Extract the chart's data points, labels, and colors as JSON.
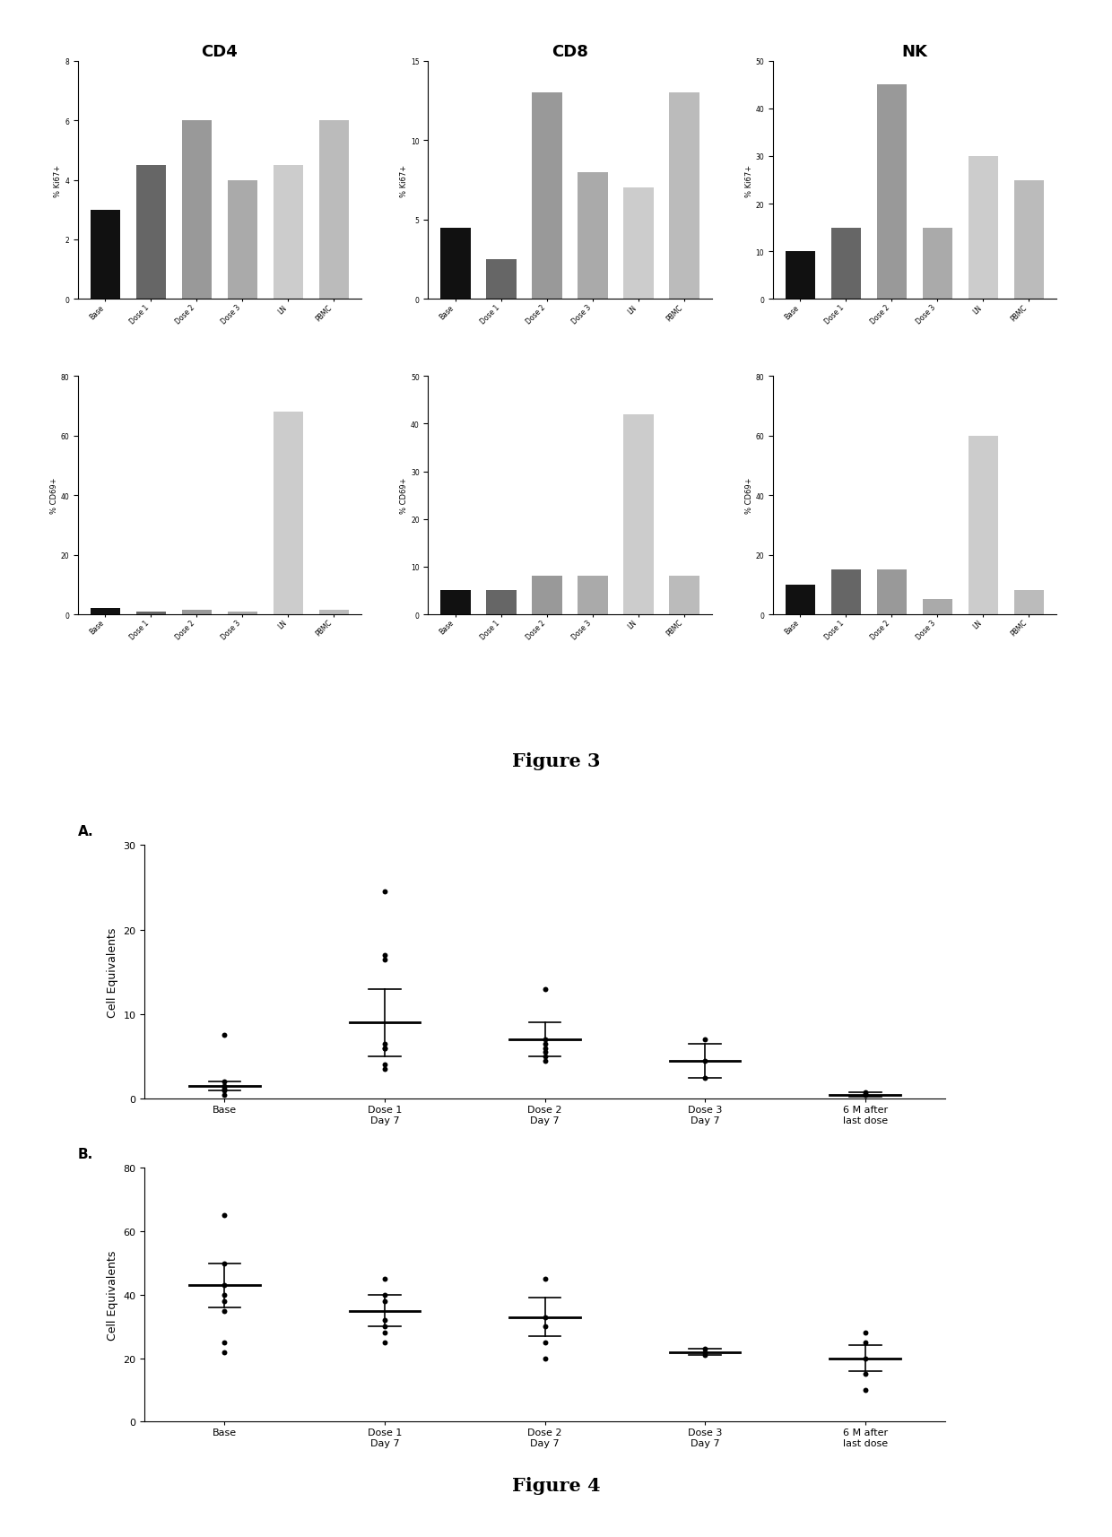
{
  "fig3": {
    "col_titles": [
      "CD4",
      "CD8",
      "NK"
    ],
    "x_labels": [
      "Base",
      "Dose 1",
      "Dose 2",
      "Dose 3",
      "LN",
      "PBMC"
    ],
    "ki67": {
      "CD4": [
        3.0,
        4.5,
        6.0,
        4.0,
        4.5,
        6.0
      ],
      "CD8": [
        4.5,
        2.5,
        13.0,
        8.0,
        7.0,
        13.0
      ],
      "NK": [
        10.0,
        15.0,
        45.0,
        15.0,
        30.0,
        25.0
      ]
    },
    "ki67_ylim": {
      "CD4": [
        0,
        8
      ],
      "CD8": [
        0,
        15
      ],
      "NK": [
        0,
        50
      ]
    },
    "ki67_yticks": {
      "CD4": [
        0,
        2,
        4,
        6,
        8
      ],
      "CD8": [
        0,
        5,
        10,
        15
      ],
      "NK": [
        0,
        10,
        20,
        30,
        40,
        50
      ]
    },
    "cd69": {
      "CD4": [
        2.0,
        1.0,
        1.5,
        1.0,
        68.0,
        1.5
      ],
      "CD8": [
        5.0,
        5.0,
        8.0,
        8.0,
        42.0,
        8.0
      ],
      "NK": [
        10.0,
        15.0,
        15.0,
        5.0,
        60.0,
        8.0
      ]
    },
    "cd69_ylim": {
      "CD4": [
        0,
        80
      ],
      "CD8": [
        0,
        50
      ],
      "NK": [
        0,
        80
      ]
    },
    "cd69_yticks": {
      "CD4": [
        0,
        20,
        40,
        60,
        80
      ],
      "CD8": [
        0,
        10,
        20,
        30,
        40,
        50
      ],
      "NK": [
        0,
        20,
        40,
        60,
        80
      ]
    },
    "bar_colors_list": [
      "#111111",
      "#666666",
      "#999999",
      "#aaaaaa",
      "#cccccc",
      "#bbbbbb"
    ]
  },
  "fig4": {
    "x_labels": [
      "Base",
      "Dose 1\nDay 7",
      "Dose 2\nDay 7",
      "Dose 3\nDay 7",
      "6 M after\nlast dose"
    ],
    "panel_A": {
      "label": "A.",
      "ylabel": "Cell Equivalents",
      "ylim": [
        0,
        30
      ],
      "yticks": [
        0,
        10,
        20,
        30
      ],
      "mean": [
        1.5,
        9.0,
        7.0,
        4.5,
        0.5
      ],
      "err_lo": [
        0.5,
        4.0,
        2.0,
        2.0,
        0.3
      ],
      "err_hi": [
        0.5,
        4.0,
        2.0,
        2.0,
        0.3
      ],
      "points": [
        [
          0.5,
          1.0,
          1.2,
          1.5,
          2.0,
          7.5
        ],
        [
          3.5,
          4.0,
          6.0,
          6.0,
          6.5,
          16.5,
          17.0,
          24.5
        ],
        [
          4.5,
          5.0,
          5.5,
          6.0,
          6.5,
          7.0,
          13.0
        ],
        [
          2.5,
          4.5,
          7.0
        ],
        [
          0.4,
          0.5,
          0.6,
          0.8
        ]
      ]
    },
    "panel_B": {
      "label": "B.",
      "ylabel": "Cell Equivalents",
      "ylim": [
        0,
        80
      ],
      "yticks": [
        0,
        20,
        40,
        60,
        80
      ],
      "mean": [
        43.0,
        35.0,
        33.0,
        22.0,
        20.0
      ],
      "err_lo": [
        7.0,
        5.0,
        6.0,
        1.0,
        4.0
      ],
      "err_hi": [
        7.0,
        5.0,
        6.0,
        1.0,
        4.0
      ],
      "points": [
        [
          22.0,
          25.0,
          35.0,
          38.0,
          40.0,
          43.0,
          50.0,
          65.0
        ],
        [
          25.0,
          28.0,
          30.0,
          32.0,
          38.0,
          40.0,
          45.0
        ],
        [
          20.0,
          25.0,
          30.0,
          33.0,
          45.0
        ],
        [
          21.0,
          22.0,
          23.0
        ],
        [
          10.0,
          15.0,
          20.0,
          25.0,
          28.0
        ]
      ]
    }
  }
}
